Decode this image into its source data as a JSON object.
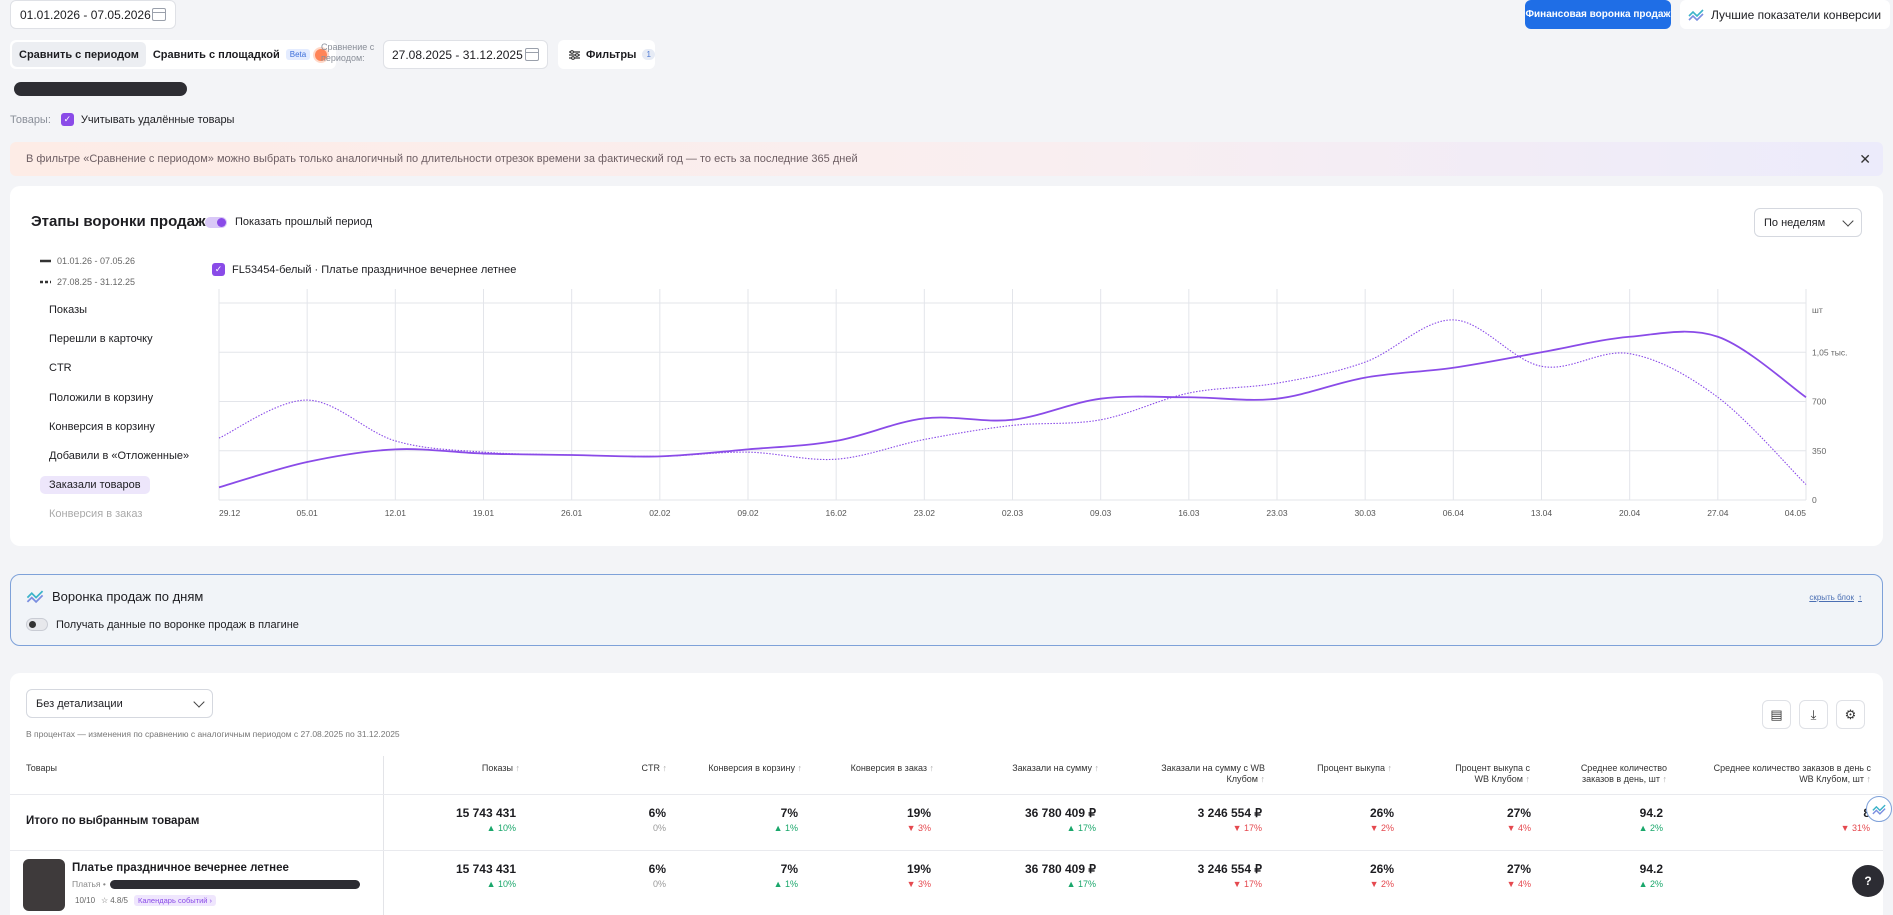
{
  "top": {
    "date_range": "01.01.2026 - 07.05.2026",
    "funnel_button": "Финансовая воронка продаж",
    "best_conversion_button": "Лучшие показатели конверсии"
  },
  "compare": {
    "with_period": "Сравнить с периодом",
    "with_marketplace": "Сравнить с площадкой",
    "beta": "Beta",
    "label": "Сравнение с периодом:",
    "date_range": "27.08.2025 - 31.12.2025",
    "filters": "Фильтры",
    "filters_count": "1"
  },
  "goods": {
    "label": "Товары:",
    "deleted_label": "Учитывать удалённые товары"
  },
  "banner": {
    "text": "В фильтре «Сравнение с периодом» можно выбрать только аналогичный по длительности отрезок времени за фактический год — то есть за последние 365 дней"
  },
  "funnel": {
    "title": "Этапы воронки продаж",
    "show_prev": "Показать прошлый период",
    "period_select": "По неделям",
    "legend_current": "01.01.26 - 07.05.26",
    "legend_prev": "27.08.25 - 31.12.25",
    "product_label": "FL53454-белый · Платье праздничное вечернее летнее",
    "stages": [
      "Показы",
      "Перешли в карточку",
      "CTR",
      "Положили в корзину",
      "Конверсия в корзину",
      "Добавили в «Отложенные»",
      "Заказали товаров",
      "Конверсия в заказ"
    ],
    "active_stage": 6
  },
  "chart_data": {
    "type": "line",
    "x": [
      "29.12",
      "05.01",
      "12.01",
      "19.01",
      "26.01",
      "02.02",
      "09.02",
      "16.02",
      "23.02",
      "02.03",
      "09.03",
      "16.03",
      "23.03",
      "30.03",
      "06.04",
      "13.04",
      "20.04",
      "27.04",
      "04.05"
    ],
    "y_unit": "шт",
    "yticks": [
      "0",
      "350",
      "700",
      "1,05 тыс."
    ],
    "ylim": [
      0,
      1400
    ],
    "series": [
      {
        "name": "01.01.26 - 07.05.26",
        "style": "solid",
        "values": [
          90,
          270,
          360,
          330,
          320,
          310,
          360,
          420,
          580,
          570,
          720,
          730,
          720,
          870,
          940,
          1050,
          1160,
          1160,
          730
        ]
      },
      {
        "name": "27.08.25 - 31.12.25",
        "style": "dotted",
        "values": [
          440,
          710,
          420,
          340,
          320,
          310,
          340,
          290,
          430,
          530,
          570,
          760,
          830,
          980,
          1280,
          950,
          1040,
          730,
          110
        ]
      }
    ]
  },
  "sales_by_day": {
    "title": "Воронка продаж по дням",
    "hide": "скрыть блок",
    "plugin_toggle": "Получать данные по воронке продаж в плагине"
  },
  "table": {
    "detail_select": "Без детализации",
    "note": "В процентах — изменения по сравнению с аналогичным периодом с 27.08.2025 по 31.12.2025",
    "goods_header": "Товары",
    "headers": [
      "Показы",
      "CTR",
      "Конверсия в корзину",
      "Конверсия в заказ",
      "Заказали на сумму",
      "Заказали на сумму с WB Клубом",
      "Процент выкупа",
      "Процент выкупа с WB Клубом",
      "Среднее количество заказов в день, шт",
      "Среднее количество заказов в день с WB Клубом, шт"
    ],
    "total_label": "Итого по выбранным товарам",
    "total_values": [
      {
        "v": "15 743 431",
        "d": "10%",
        "t": "up"
      },
      {
        "v": "6%",
        "d": "0%",
        "t": "zero"
      },
      {
        "v": "7%",
        "d": "1%",
        "t": "up"
      },
      {
        "v": "19%",
        "d": "3%",
        "t": "dn"
      },
      {
        "v": "36 780 409 ₽",
        "d": "17%",
        "t": "up"
      },
      {
        "v": "3 246 554 ₽",
        "d": "17%",
        "t": "dn"
      },
      {
        "v": "26%",
        "d": "2%",
        "t": "dn"
      },
      {
        "v": "27%",
        "d": "4%",
        "t": "dn"
      },
      {
        "v": "94.2",
        "d": "2%",
        "t": "up"
      },
      {
        "v": "8",
        "d": "31%",
        "t": "dn"
      }
    ],
    "product": {
      "name": "Платье праздничное вечернее летнее",
      "category": "Платья •",
      "score": "10/10",
      "rating": "4.8/5",
      "calendar_tag": "Календарь событий"
    },
    "product_values": [
      {
        "v": "15 743 431",
        "d": "10%",
        "t": "up"
      },
      {
        "v": "6%",
        "d": "0%",
        "t": "zero"
      },
      {
        "v": "7%",
        "d": "1%",
        "t": "up"
      },
      {
        "v": "19%",
        "d": "3%",
        "t": "dn"
      },
      {
        "v": "36 780 409 ₽",
        "d": "17%",
        "t": "up"
      },
      {
        "v": "3 246 554 ₽",
        "d": "17%",
        "t": "dn"
      },
      {
        "v": "26%",
        "d": "2%",
        "t": "dn"
      },
      {
        "v": "27%",
        "d": "4%",
        "t": "dn"
      },
      {
        "v": "94.2",
        "d": "2%",
        "t": "up"
      },
      {
        "v": "",
        "d": "",
        "t": "dn"
      }
    ]
  },
  "colors": {
    "accent": "#8a4be8",
    "primary": "#1f6ee6",
    "up": "#1aa76b",
    "down": "#e5494f"
  },
  "help": "?"
}
